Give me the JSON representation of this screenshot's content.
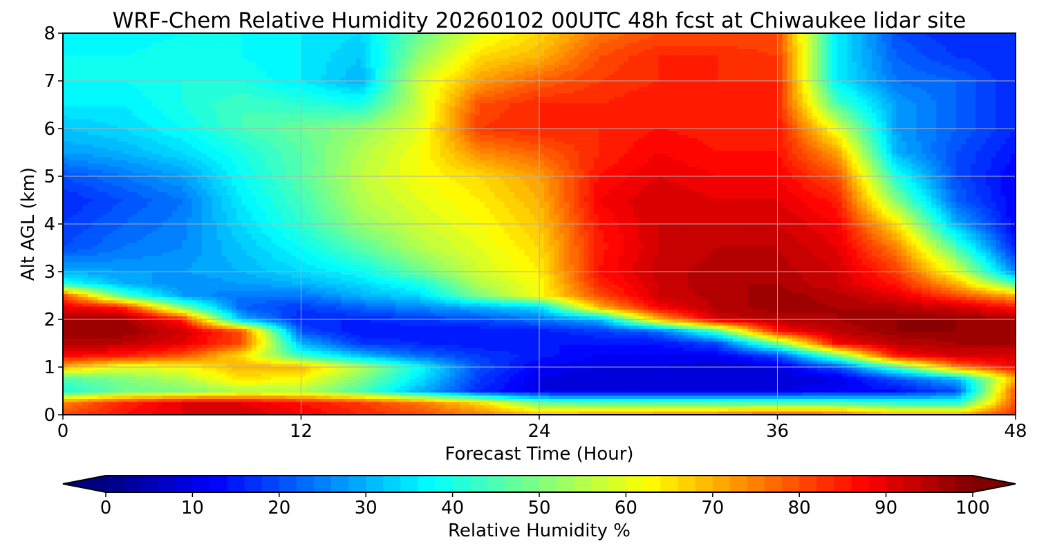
{
  "chart_data": {
    "type": "heatmap",
    "title": "WRF-Chem Relative Humidity 20260102 00UTC 48h fcst at Chiwaukee lidar site",
    "xlabel": "Forecast Time (Hour)",
    "ylabel": "Alt AGL (km)",
    "xlim": [
      0,
      48
    ],
    "ylim": [
      0,
      8
    ],
    "x_ticks": [
      0,
      12,
      24,
      36,
      48
    ],
    "y_ticks": [
      0,
      1,
      2,
      3,
      4,
      5,
      6,
      7,
      8
    ],
    "grid": true,
    "colormap": "jet",
    "colorbar": {
      "label": "Relative Humidity %",
      "min": 0,
      "max": 100,
      "step": 2,
      "ticks": [
        0,
        10,
        20,
        30,
        40,
        50,
        60,
        70,
        80,
        90,
        100
      ],
      "extend": "both",
      "placement": "bottom"
    },
    "x": [
      0,
      3,
      6,
      9,
      12,
      15,
      18,
      21,
      24,
      27,
      30,
      33,
      36,
      39,
      42,
      45,
      48
    ],
    "y": [
      0.0,
      0.25,
      0.5,
      0.75,
      1.0,
      1.25,
      1.5,
      1.75,
      2.0,
      2.25,
      2.5,
      2.75,
      3.0,
      3.5,
      4.0,
      4.5,
      5.0,
      5.5,
      6.0,
      6.5,
      7.0,
      7.5,
      8.0
    ],
    "z": [
      [
        80,
        86,
        90,
        92,
        88,
        84,
        80,
        75,
        70,
        72,
        74,
        76,
        80,
        78,
        70,
        70,
        84
      ],
      [
        75,
        84,
        90,
        90,
        86,
        82,
        76,
        66,
        48,
        45,
        45,
        45,
        45,
        45,
        42,
        40,
        80
      ],
      [
        40,
        48,
        50,
        55,
        55,
        45,
        30,
        16,
        10,
        10,
        10,
        10,
        10,
        12,
        14,
        20,
        80
      ],
      [
        45,
        50,
        55,
        65,
        62,
        50,
        35,
        18,
        10,
        8,
        8,
        8,
        8,
        10,
        20,
        30,
        70
      ],
      [
        70,
        60,
        62,
        70,
        70,
        55,
        38,
        20,
        12,
        10,
        10,
        8,
        10,
        20,
        45,
        75,
        88
      ],
      [
        88,
        86,
        80,
        66,
        42,
        30,
        22,
        18,
        15,
        12,
        12,
        12,
        20,
        50,
        88,
        92,
        92
      ],
      [
        94,
        94,
        90,
        80,
        30,
        18,
        16,
        14,
        14,
        14,
        14,
        20,
        50,
        88,
        94,
        96,
        96
      ],
      [
        98,
        98,
        92,
        80,
        20,
        14,
        14,
        14,
        15,
        18,
        22,
        45,
        86,
        94,
        98,
        98,
        98
      ],
      [
        96,
        97,
        85,
        30,
        16,
        16,
        18,
        20,
        24,
        30,
        70,
        92,
        95,
        96,
        98,
        98,
        96
      ],
      [
        90,
        85,
        50,
        22,
        18,
        22,
        26,
        30,
        34,
        70,
        88,
        95,
        97,
        96,
        95,
        92,
        86
      ],
      [
        80,
        45,
        28,
        24,
        24,
        30,
        34,
        50,
        62,
        80,
        92,
        95,
        97,
        95,
        90,
        80,
        70
      ],
      [
        40,
        30,
        26,
        28,
        30,
        34,
        40,
        55,
        62,
        84,
        92,
        96,
        96,
        92,
        85,
        70,
        45
      ],
      [
        30,
        28,
        28,
        30,
        34,
        38,
        48,
        58,
        64,
        86,
        93,
        95,
        95,
        92,
        82,
        60,
        25
      ],
      [
        20,
        24,
        26,
        32,
        38,
        46,
        55,
        60,
        66,
        85,
        92,
        94,
        94,
        90,
        75,
        45,
        15
      ],
      [
        18,
        22,
        25,
        34,
        42,
        52,
        58,
        62,
        68,
        86,
        92,
        92,
        92,
        88,
        65,
        30,
        12
      ],
      [
        16,
        20,
        24,
        36,
        44,
        55,
        60,
        64,
        70,
        88,
        92,
        90,
        90,
        85,
        50,
        22,
        12
      ],
      [
        20,
        24,
        28,
        38,
        46,
        56,
        62,
        66,
        72,
        86,
        90,
        88,
        88,
        80,
        40,
        20,
        12
      ],
      [
        28,
        30,
        34,
        40,
        46,
        55,
        62,
        74,
        78,
        84,
        88,
        86,
        86,
        72,
        30,
        20,
        14
      ],
      [
        32,
        34,
        38,
        44,
        48,
        52,
        60,
        82,
        84,
        84,
        86,
        85,
        86,
        60,
        28,
        22,
        16
      ],
      [
        36,
        36,
        40,
        44,
        42,
        40,
        58,
        80,
        84,
        84,
        86,
        84,
        84,
        45,
        28,
        22,
        16
      ],
      [
        38,
        38,
        40,
        40,
        36,
        30,
        58,
        72,
        78,
        82,
        84,
        84,
        84,
        36,
        24,
        22,
        16
      ],
      [
        38,
        38,
        40,
        38,
        36,
        32,
        52,
        66,
        70,
        80,
        84,
        84,
        82,
        36,
        22,
        18,
        16
      ],
      [
        36,
        36,
        38,
        38,
        36,
        34,
        48,
        60,
        66,
        76,
        80,
        80,
        80,
        36,
        20,
        16,
        16
      ]
    ]
  }
}
